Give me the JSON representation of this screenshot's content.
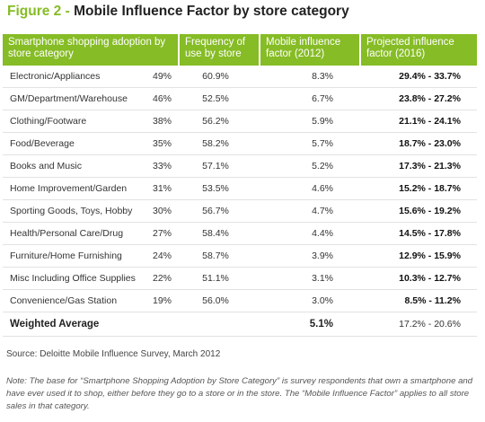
{
  "figure": {
    "number": "Figure 2",
    "separator": " - ",
    "title": "Mobile Influence Factor by store category"
  },
  "table": {
    "headers": {
      "category": "Smartphone shopping adoption by store category",
      "frequency": "Frequency of use by store",
      "mif_2012": "Mobile influence factor (2012)",
      "projected_2016": "Projected influence factor (2016)"
    },
    "rows": [
      {
        "category": "Electronic/Appliances",
        "adoption": "49%",
        "frequency": "60.9%",
        "mif_2012": "8.3%",
        "projected_2016": "29.4% - 33.7%"
      },
      {
        "category": "GM/Department/Warehouse",
        "adoption": "46%",
        "frequency": "52.5%",
        "mif_2012": "6.7%",
        "projected_2016": "23.8% - 27.2%"
      },
      {
        "category": "Clothing/Footware",
        "adoption": "38%",
        "frequency": "56.2%",
        "mif_2012": "5.9%",
        "projected_2016": "21.1% - 24.1%"
      },
      {
        "category": "Food/Beverage",
        "adoption": "35%",
        "frequency": "58.2%",
        "mif_2012": "5.7%",
        "projected_2016": "18.7% - 23.0%"
      },
      {
        "category": "Books and Music",
        "adoption": "33%",
        "frequency": "57.1%",
        "mif_2012": "5.2%",
        "projected_2016": "17.3% - 21.3%"
      },
      {
        "category": "Home Improvement/Garden",
        "adoption": "31%",
        "frequency": "53.5%",
        "mif_2012": "4.6%",
        "projected_2016": "15.2% - 18.7%"
      },
      {
        "category": "Sporting Goods, Toys, Hobby",
        "adoption": "30%",
        "frequency": "56.7%",
        "mif_2012": "4.7%",
        "projected_2016": "15.6% - 19.2%"
      },
      {
        "category": "Health/Personal Care/Drug",
        "adoption": "27%",
        "frequency": "58.4%",
        "mif_2012": "4.4%",
        "projected_2016": "14.5% - 17.8%"
      },
      {
        "category": "Furniture/Home Furnishing",
        "adoption": "24%",
        "frequency": "58.7%",
        "mif_2012": "3.9%",
        "projected_2016": "12.9% - 15.9%"
      },
      {
        "category": "Misc Including Office Supplies",
        "adoption": "22%",
        "frequency": "51.1%",
        "mif_2012": "3.1%",
        "projected_2016": "10.3% - 12.7%"
      },
      {
        "category": "Convenience/Gas Station",
        "adoption": "19%",
        "frequency": "56.0%",
        "mif_2012": "3.0%",
        "projected_2016": "8.5% - 11.2%"
      }
    ],
    "weighted_average": {
      "label": "Weighted Average",
      "mif_2012": "5.1%",
      "projected_2016": "17.2% - 20.6%"
    }
  },
  "source": "Source: Deloitte Mobile Influence Survey, March 2012",
  "note": "Note: The base for “Smartphone Shopping Adoption by Store Category” is survey respondents that own a smartphone and have ever used it to shop, either before they go to a store or in the store.  The “Mobile Influence Factor” applies to all store sales in that category.",
  "colors": {
    "accent": "#86bc25",
    "header_text": "#ffffff",
    "row_divider": "#e2e2e2"
  }
}
